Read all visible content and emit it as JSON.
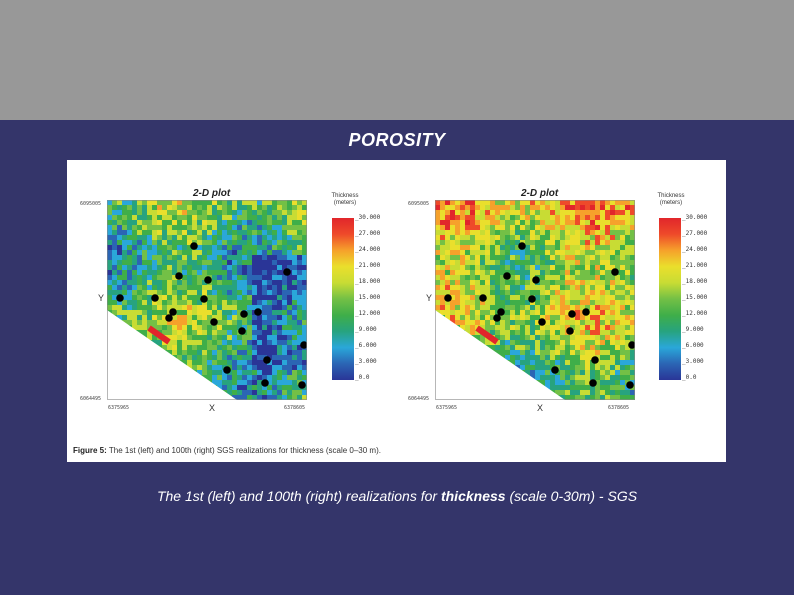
{
  "slide": {
    "title": "POROSITY",
    "caption_prefix": "The 1st (left) and 100th (right) realizations for ",
    "caption_bold": "thickness",
    "caption_mid": " (scale 0-30m) - ",
    "caption_tail": "SGS"
  },
  "figure": {
    "caption_label": "Figure 5:",
    "caption_text": " The 1st (left) and 100th (right) SGS realizations for thickness (scale 0–30 m).",
    "left_panel": {
      "title": "2-D plot",
      "ylabel": "Y",
      "xlabel": "X",
      "y_top": "6095005",
      "y_bottom": "6064495",
      "x_left": "6375965",
      "x_right": "6378605",
      "legend_title": "Thickness\n(meters)",
      "legend_ticks": [
        "30.000",
        "27.000",
        "24.000",
        "21.000",
        "18.000",
        "15.000",
        "12.000",
        "9.000",
        "6.000",
        "3.000",
        "0.0"
      ]
    },
    "right_panel": {
      "title": "2-D plot",
      "ylabel": "Y",
      "xlabel": "X",
      "y_top": "6095005",
      "y_bottom": "6064495",
      "x_left": "6375965",
      "x_right": "6378605",
      "legend_title": "Thickness\n(meters)",
      "legend_ticks": [
        "30.000",
        "27.000",
        "24.000",
        "21.000",
        "18.000",
        "15.000",
        "12.000",
        "9.000",
        "6.000",
        "3.000",
        "0.0"
      ]
    },
    "colors": {
      "high": "#e1262b",
      "mid": "#3fae49",
      "low": "#2a3597",
      "wells": "#000000"
    }
  }
}
